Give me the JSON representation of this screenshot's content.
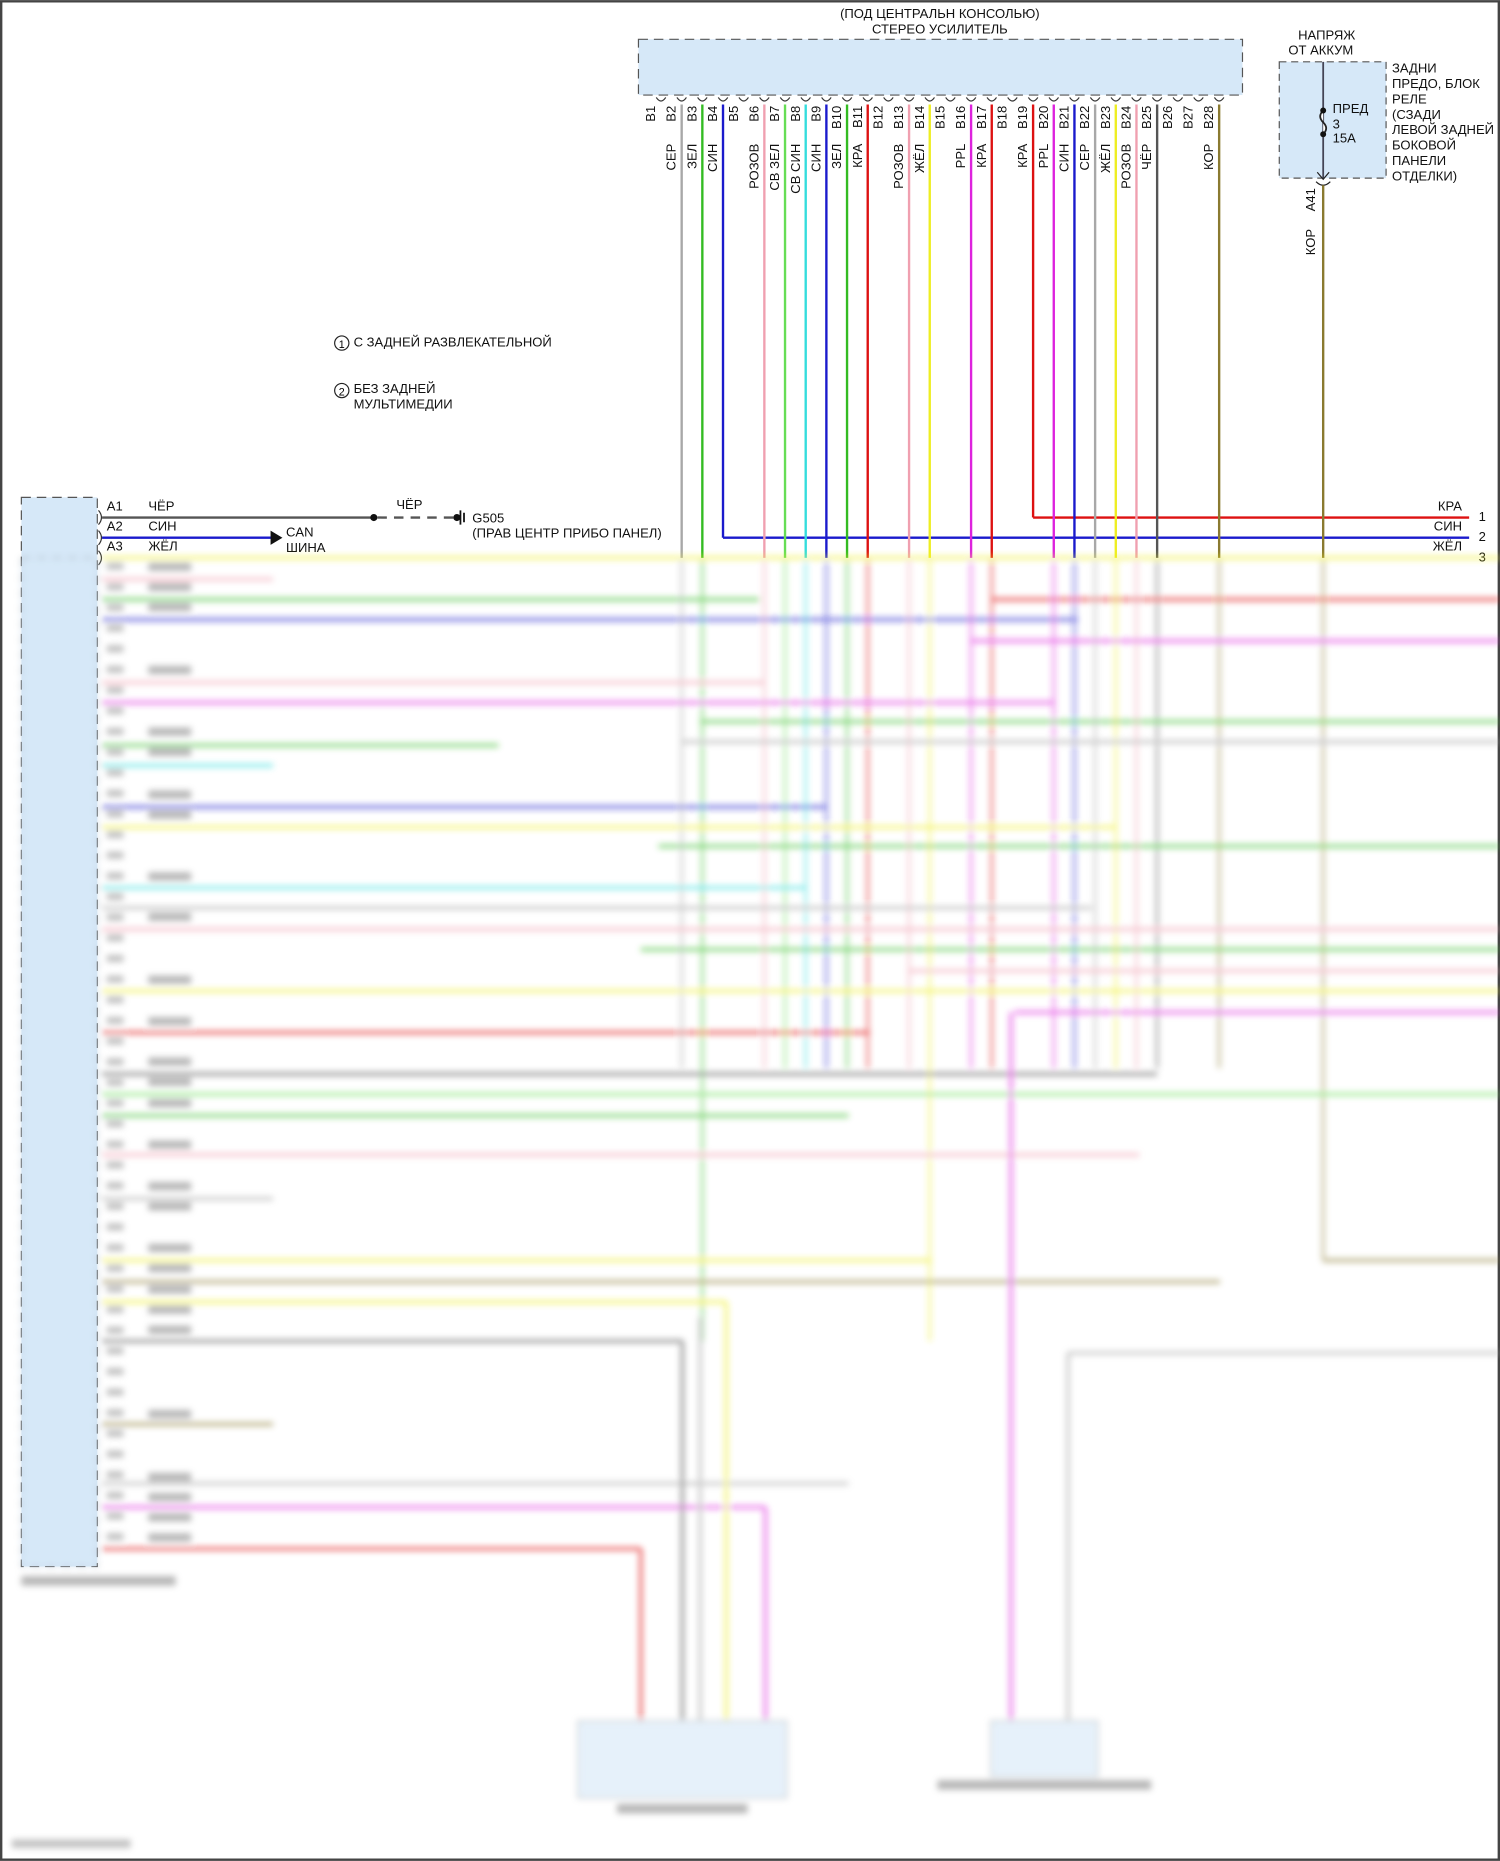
{
  "amplifier": {
    "title_line1": "(ПОД ЦЕНТРАЛЬН КОНСОЛЬЮ)",
    "title_line2": "СТЕРЕО УСИЛИТЕЛЬ",
    "pins": [
      {
        "pin": "B1",
        "wire": "",
        "color": ""
      },
      {
        "pin": "B2",
        "wire": "СЕР",
        "color": "#a8a8a8"
      },
      {
        "pin": "B3",
        "wire": "ЗЕЛ",
        "color": "#33bb22"
      },
      {
        "pin": "B4",
        "wire": "СИН",
        "color": "#1a1acc"
      },
      {
        "pin": "B5",
        "wire": "",
        "color": ""
      },
      {
        "pin": "B6",
        "wire": "РОЗОВ",
        "color": "#f0a0b0"
      },
      {
        "pin": "B7",
        "wire": "СВ ЗЕЛ",
        "color": "#66dd55"
      },
      {
        "pin": "B8",
        "wire": "СВ СИН",
        "color": "#33dddd"
      },
      {
        "pin": "B9",
        "wire": "СИН",
        "color": "#1a1acc"
      },
      {
        "pin": "B10",
        "wire": "ЗЕЛ",
        "color": "#33bb22"
      },
      {
        "pin": "B11",
        "wire": "КРА",
        "color": "#dd1111"
      },
      {
        "pin": "B12",
        "wire": "",
        "color": ""
      },
      {
        "pin": "B13",
        "wire": "РОЗОВ",
        "color": "#f0a0b0"
      },
      {
        "pin": "B14",
        "wire": "ЖЁЛ",
        "color": "#eeee22"
      },
      {
        "pin": "B15",
        "wire": "",
        "color": ""
      },
      {
        "pin": "B16",
        "wire": "PPL",
        "color": "#dd22dd"
      },
      {
        "pin": "B17",
        "wire": "КРА",
        "color": "#dd1111"
      },
      {
        "pin": "B18",
        "wire": "",
        "color": ""
      },
      {
        "pin": "B19",
        "wire": "КРА",
        "color": "#dd1111"
      },
      {
        "pin": "B20",
        "wire": "PPL",
        "color": "#dd22dd"
      },
      {
        "pin": "B21",
        "wire": "СИН",
        "color": "#1a1acc"
      },
      {
        "pin": "B22",
        "wire": "СЕР",
        "color": "#a8a8a8"
      },
      {
        "pin": "B23",
        "wire": "ЖЁЛ",
        "color": "#eeee22"
      },
      {
        "pin": "B24",
        "wire": "РОЗОВ",
        "color": "#f0a0b0"
      },
      {
        "pin": "B25",
        "wire": "ЧЁР",
        "color": "#555555"
      },
      {
        "pin": "B26",
        "wire": "",
        "color": ""
      },
      {
        "pin": "B27",
        "wire": "",
        "color": ""
      },
      {
        "pin": "B28",
        "wire": "КОР",
        "color": "#8a7a30"
      }
    ]
  },
  "fuse_block": {
    "supply_line1": "НАПРЯЖ",
    "supply_line2": "ОТ АККУМ",
    "fuse_name": "ПРЕД",
    "fuse_number": "3",
    "fuse_rating": "15А",
    "location_lines": [
      "ЗАДНИ",
      "ПРЕДО, БЛОК",
      "РЕЛЕ",
      "(СЗАДИ",
      "ЛЕВОЙ ЗАДНЕЙ",
      "БОКОВОЙ",
      "ПАНЕЛИ",
      "ОТДЕЛКИ)"
    ],
    "pin": "A41",
    "wire": "КОР"
  },
  "notes": {
    "note1_num": "1",
    "note1": "С ЗАДНЕЙ РАЗВЛЕКАТЕЛЬНОЙ",
    "note2_num": "2",
    "note2_line1": "БЕЗ ЗАДНЕЙ",
    "note2_line2": "МУЛЬТИМЕДИИ"
  },
  "left_connector": {
    "pins": [
      {
        "pin": "A1",
        "wire": "ЧЁР"
      },
      {
        "pin": "A2",
        "wire": "СИН"
      },
      {
        "pin": "A3",
        "wire": "ЖЁЛ"
      }
    ],
    "ground_wire": "ЧЁР",
    "ground_id": "G505",
    "ground_location": "(ПРАВ ЦЕНТР ПРИБО ПАНЕЛ)",
    "can_line1": "CAN",
    "can_line2": "ШИНА"
  },
  "right_connector": {
    "pins": [
      {
        "num": "1",
        "wire": "КРА"
      },
      {
        "num": "2",
        "wire": "СИН"
      },
      {
        "num": "3",
        "wire": "ЖЁЛ"
      }
    ]
  },
  "colors": {
    "module_fill": "#d6e8f8",
    "black_wire": "#555555"
  }
}
